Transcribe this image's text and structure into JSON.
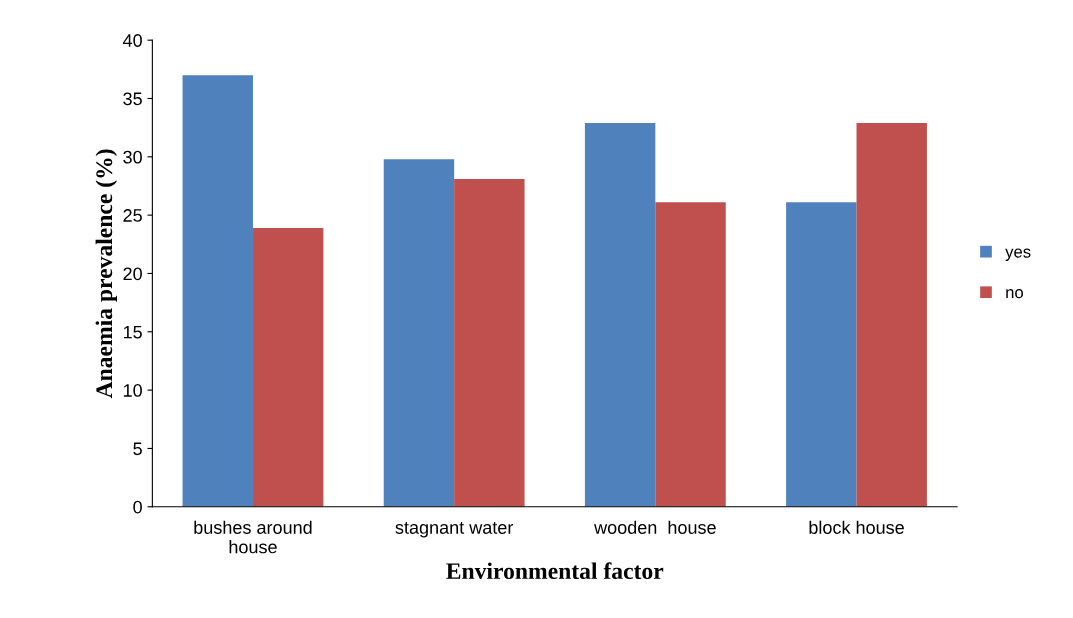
{
  "chart_data": {
    "type": "bar",
    "xlabel": "Environmental factor",
    "ylabel": "Anaemia prevalence (%)",
    "categories": [
      "bushes around house",
      "stagnant water",
      "wooden  house",
      "block house"
    ],
    "series": [
      {
        "name": "yes",
        "color": "#4f81bd",
        "values": [
          37,
          29.8,
          32.9,
          26.1
        ]
      },
      {
        "name": "no",
        "color": "#c0504d",
        "values": [
          23.9,
          28.1,
          26.1,
          32.9
        ]
      }
    ],
    "ylim": [
      0,
      40
    ],
    "yticks": [
      0,
      5,
      10,
      15,
      20,
      25,
      30,
      35,
      40
    ],
    "grid": false,
    "legend": "right"
  }
}
